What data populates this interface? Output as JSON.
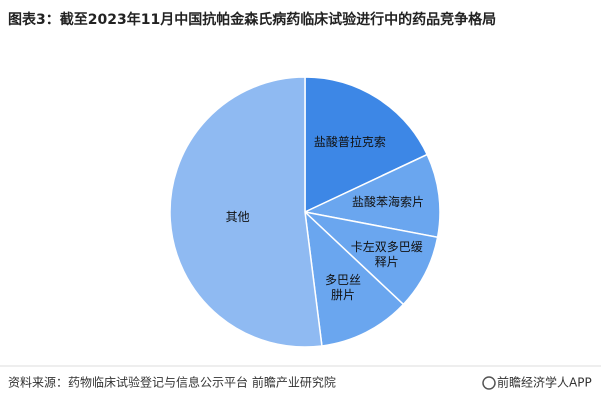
{
  "chart_data": {
    "type": "pie",
    "title": "图表3：截至2023年11月中国抗帕金森氏病药临床试验进行中的药品竞争格局",
    "categories": [
      "盐酸普拉克索",
      "盐酸苯海索片",
      "卡左双多巴缓释片",
      "多巴丝肼片",
      "其他"
    ],
    "values": [
      18,
      10,
      9,
      11,
      52
    ],
    "colors": [
      "#3d87e6",
      "#6aa6ef",
      "#6aa6ef",
      "#6aa6ef",
      "#8fbaf2"
    ],
    "source": "资料来源：药物临床试验登记与信息公示平台 前瞻产业研究院",
    "brand": "前瞻经济学人APP"
  }
}
